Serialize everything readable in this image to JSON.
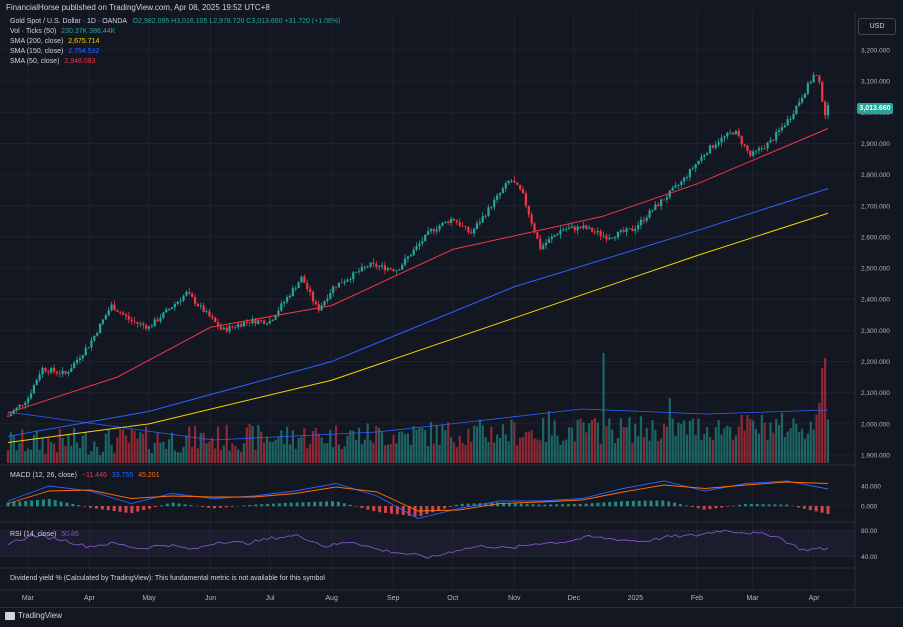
{
  "header": {
    "publisher_line": "FinancialHorse published on TradingView.com, Apr 08, 2025 19:52 UTC+8"
  },
  "main_legend": {
    "symbol": "Gold Spot / U.S. Dollar · 1D · OANDA",
    "ohlc": "O2,982.095 H3,016.105 L2,978.720 C3,013.660 +31.720 (+1.06%)"
  },
  "indicators": [
    {
      "label": "Vol · Ticks (50)",
      "value": "230.37K  386.44K",
      "color": "#26a69a"
    },
    {
      "label": "SMA (200, close)",
      "value": "2,675.714",
      "color": "#f5d400"
    },
    {
      "label": "SMA (150, close)",
      "value": "2,754.532",
      "color": "#2962ff"
    },
    {
      "label": "SMA (50, close)",
      "value": "2,948.083",
      "color": "#f23645"
    }
  ],
  "macd_legend": {
    "label": "MACD (12, 26, close)",
    "hist": "−11.446",
    "macd": "33.755",
    "signal": "45.201"
  },
  "rsi_legend": {
    "label": "RSI (14, close)",
    "value": "50.85"
  },
  "currency_button": "USD",
  "last_price_tag": "3,013.660",
  "dividend_note": "Dividend yield % (Calculated by TradingView): This fundamental metric is not available for this symbol",
  "brand": "TradingView",
  "colors": {
    "up": "#26a69a",
    "down": "#f23645",
    "bg": "#131722",
    "grid": "#1e222d",
    "macd": "#2962ff",
    "signal": "#ff6d00",
    "rsi": "#7e57c2"
  },
  "chart_data": [
    {
      "type": "line",
      "title": "Gold Spot / U.S. Dollar · 1D · OANDA",
      "ylim": [
        1880,
        3220
      ],
      "y_ticks": [
        "3,200.000",
        "3,100.000",
        "3,000.000",
        "2,900.000",
        "2,800.000",
        "2,700.000",
        "2,600.000",
        "2,500.000",
        "2,400.000",
        "2,300.000",
        "2,200.000",
        "2,100.000",
        "2,000.000",
        "1,900.000"
      ],
      "x_labels": [
        "Mar",
        "Apr",
        "May",
        "Jun",
        "Jul",
        "Aug",
        "Sep",
        "Oct",
        "Nov",
        "Dec",
        "2025",
        "Feb",
        "Mar",
        "Apr"
      ],
      "price_series": {
        "name": "XAUUSD",
        "x": [
          "2024-02-20",
          "2024-03-01",
          "2024-03-08",
          "2024-03-20",
          "2024-04-01",
          "2024-04-12",
          "2024-04-22",
          "2024-05-01",
          "2024-05-20",
          "2024-06-07",
          "2024-06-20",
          "2024-07-01",
          "2024-07-17",
          "2024-07-25",
          "2024-08-02",
          "2024-08-20",
          "2024-09-03",
          "2024-09-20",
          "2024-10-01",
          "2024-10-10",
          "2024-10-30",
          "2024-11-05",
          "2024-11-14",
          "2024-11-25",
          "2024-12-06",
          "2024-12-18",
          "2024-12-31",
          "2025-01-10",
          "2025-01-24",
          "2025-02-05",
          "2025-02-11",
          "2025-02-20",
          "2025-02-28",
          "2025-03-10",
          "2025-03-20",
          "2025-04-01",
          "2025-04-03",
          "2025-04-07",
          "2025-04-08"
        ],
        "y": [
          2025,
          2082,
          2178,
          2160,
          2255,
          2380,
          2330,
          2310,
          2420,
          2300,
          2330,
          2330,
          2470,
          2365,
          2440,
          2510,
          2495,
          2620,
          2660,
          2610,
          2785,
          2740,
          2565,
          2625,
          2630,
          2600,
          2625,
          2690,
          2775,
          2870,
          2905,
          2940,
          2860,
          2905,
          2985,
          3120,
          3110,
          2982,
          3014
        ]
      },
      "sma_200": {
        "x": [
          "2024-02-20",
          "2024-05-01",
          "2024-08-01",
          "2024-11-01",
          "2025-02-01",
          "2025-04-08"
        ],
        "y": [
          1940,
          2000,
          2140,
          2340,
          2540,
          2676
        ]
      },
      "sma_150": {
        "x": [
          "2024-02-20",
          "2024-05-01",
          "2024-08-01",
          "2024-11-01",
          "2025-02-01",
          "2025-04-08"
        ],
        "y": [
          1960,
          2040,
          2200,
          2440,
          2620,
          2755
        ]
      },
      "sma_50": {
        "x": [
          "2024-02-20",
          "2024-04-15",
          "2024-06-01",
          "2024-08-01",
          "2024-10-01",
          "2024-12-15",
          "2025-02-01",
          "2025-04-08"
        ],
        "y": [
          2035,
          2150,
          2310,
          2380,
          2560,
          2665,
          2770,
          2948
        ]
      }
    },
    {
      "type": "line",
      "title": "MACD (12, 26, close)",
      "ylim": [
        -30,
        70
      ],
      "y_ticks": [
        "40.000",
        "0.000"
      ],
      "series": [
        {
          "name": "MACD",
          "values": [
            10,
            40,
            30,
            5,
            25,
            15,
            20,
            30,
            45,
            20,
            -25,
            -5,
            10,
            10,
            15,
            35,
            50,
            30,
            45,
            50,
            34
          ]
        },
        {
          "name": "Signal",
          "values": [
            5,
            30,
            32,
            15,
            20,
            18,
            18,
            25,
            38,
            28,
            -10,
            -8,
            5,
            8,
            12,
            28,
            42,
            35,
            42,
            48,
            45
          ]
        }
      ]
    },
    {
      "type": "line",
      "title": "RSI (14, close)",
      "ylim": [
        25,
        85
      ],
      "y_ticks": [
        "80.00",
        "40.00"
      ],
      "series": [
        {
          "name": "RSI",
          "values": [
            60,
            72,
            66,
            55,
            60,
            52,
            58,
            50,
            63,
            60,
            68,
            72,
            55,
            63,
            50,
            44,
            38,
            50,
            56,
            52,
            60,
            62,
            70,
            66,
            63,
            70,
            72,
            80,
            76,
            72,
            50,
            52
          ]
        }
      ]
    }
  ]
}
